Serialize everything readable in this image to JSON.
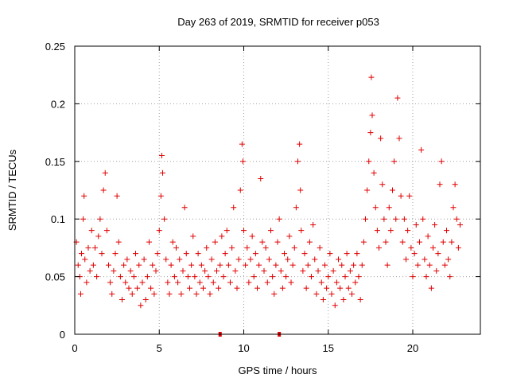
{
  "chart_data": {
    "type": "scatter",
    "title": "Day 263 of 2019, SRMTID for receiver p053",
    "xlabel": "GPS time / hours",
    "ylabel": "SRMTID / TECUs",
    "xlim": [
      0,
      24
    ],
    "ylim": [
      0,
      0.25
    ],
    "xticks": [
      0,
      5,
      10,
      15,
      20
    ],
    "xtick_labels": [
      "0",
      "5",
      "10",
      "15",
      "20"
    ],
    "yticks": [
      0,
      0.05,
      0.1,
      0.15,
      0.2,
      0.25
    ],
    "ytick_labels": [
      "0",
      "0.05",
      "0.1",
      "0.15",
      "0.2",
      "0.25"
    ],
    "grid": true,
    "marker": "+",
    "color": "#e00000",
    "series": [
      {
        "name": "SRMTID",
        "points": [
          [
            0.1,
            0.08
          ],
          [
            0.2,
            0.06
          ],
          [
            0.3,
            0.05
          ],
          [
            0.35,
            0.035
          ],
          [
            0.4,
            0.07
          ],
          [
            0.5,
            0.1
          ],
          [
            0.55,
            0.12
          ],
          [
            0.6,
            0.065
          ],
          [
            0.7,
            0.045
          ],
          [
            0.8,
            0.075
          ],
          [
            0.9,
            0.055
          ],
          [
            1.0,
            0.09
          ],
          [
            1.1,
            0.06
          ],
          [
            1.2,
            0.075
          ],
          [
            1.3,
            0.05
          ],
          [
            1.4,
            0.085
          ],
          [
            1.5,
            0.1
          ],
          [
            1.6,
            0.07
          ],
          [
            1.7,
            0.125
          ],
          [
            1.8,
            0.14
          ],
          [
            1.9,
            0.09
          ],
          [
            2.0,
            0.06
          ],
          [
            2.1,
            0.045
          ],
          [
            2.2,
            0.035
          ],
          [
            2.3,
            0.055
          ],
          [
            2.4,
            0.07
          ],
          [
            2.5,
            0.12
          ],
          [
            2.6,
            0.08
          ],
          [
            2.7,
            0.05
          ],
          [
            2.8,
            0.03
          ],
          [
            2.9,
            0.06
          ],
          [
            3.0,
            0.045
          ],
          [
            3.1,
            0.065
          ],
          [
            3.2,
            0.04
          ],
          [
            3.3,
            0.055
          ],
          [
            3.4,
            0.035
          ],
          [
            3.5,
            0.05
          ],
          [
            3.6,
            0.07
          ],
          [
            3.7,
            0.04
          ],
          [
            3.8,
            0.06
          ],
          [
            3.9,
            0.025
          ],
          [
            4.0,
            0.045
          ],
          [
            4.1,
            0.065
          ],
          [
            4.2,
            0.03
          ],
          [
            4.3,
            0.05
          ],
          [
            4.4,
            0.08
          ],
          [
            4.5,
            0.04
          ],
          [
            4.6,
            0.06
          ],
          [
            4.7,
            0.035
          ],
          [
            4.8,
            0.055
          ],
          [
            4.9,
            0.07
          ],
          [
            5.0,
            0.09
          ],
          [
            5.1,
            0.12
          ],
          [
            5.15,
            0.155
          ],
          [
            5.2,
            0.14
          ],
          [
            5.3,
            0.1
          ],
          [
            5.4,
            0.065
          ],
          [
            5.5,
            0.045
          ],
          [
            5.6,
            0.035
          ],
          [
            5.7,
            0.06
          ],
          [
            5.8,
            0.08
          ],
          [
            5.9,
            0.05
          ],
          [
            6.0,
            0.075
          ],
          [
            6.1,
            0.045
          ],
          [
            6.2,
            0.065
          ],
          [
            6.3,
            0.035
          ],
          [
            6.4,
            0.055
          ],
          [
            6.5,
            0.11
          ],
          [
            6.6,
            0.07
          ],
          [
            6.7,
            0.05
          ],
          [
            6.8,
            0.04
          ],
          [
            6.9,
            0.06
          ],
          [
            7.0,
            0.085
          ],
          [
            7.1,
            0.05
          ],
          [
            7.2,
            0.035
          ],
          [
            7.3,
            0.07
          ],
          [
            7.4,
            0.045
          ],
          [
            7.5,
            0.06
          ],
          [
            7.6,
            0.04
          ],
          [
            7.7,
            0.055
          ],
          [
            7.8,
            0.075
          ],
          [
            7.9,
            0.05
          ],
          [
            8.0,
            0.035
          ],
          [
            8.1,
            0.065
          ],
          [
            8.2,
            0.045
          ],
          [
            8.3,
            0.08
          ],
          [
            8.4,
            0.055
          ],
          [
            8.5,
            0.04
          ],
          [
            8.6,
            0.06
          ],
          [
            8.7,
            0.085
          ],
          [
            8.8,
            0.05
          ],
          [
            8.9,
            0.07
          ],
          [
            9.0,
            0.09
          ],
          [
            9.1,
            0.06
          ],
          [
            9.2,
            0.045
          ],
          [
            9.3,
            0.075
          ],
          [
            9.4,
            0.11
          ],
          [
            9.5,
            0.055
          ],
          [
            9.6,
            0.04
          ],
          [
            9.7,
            0.065
          ],
          [
            9.8,
            0.125
          ],
          [
            9.9,
            0.165
          ],
          [
            9.95,
            0.15
          ],
          [
            10.0,
            0.09
          ],
          [
            10.1,
            0.06
          ],
          [
            10.2,
            0.075
          ],
          [
            10.3,
            0.045
          ],
          [
            10.4,
            0.065
          ],
          [
            10.5,
            0.085
          ],
          [
            10.6,
            0.05
          ],
          [
            10.7,
            0.07
          ],
          [
            10.8,
            0.04
          ],
          [
            10.9,
            0.06
          ],
          [
            11.0,
            0.135
          ],
          [
            11.1,
            0.08
          ],
          [
            11.2,
            0.055
          ],
          [
            11.3,
            0.075
          ],
          [
            11.4,
            0.045
          ],
          [
            11.5,
            0.065
          ],
          [
            11.6,
            0.09
          ],
          [
            11.7,
            0.05
          ],
          [
            11.8,
            0.035
          ],
          [
            11.9,
            0.06
          ],
          [
            12.0,
            0.08
          ],
          [
            12.1,
            0.1
          ],
          [
            12.2,
            0.055
          ],
          [
            12.3,
            0.04
          ],
          [
            12.4,
            0.07
          ],
          [
            12.5,
            0.05
          ],
          [
            12.6,
            0.065
          ],
          [
            12.7,
            0.085
          ],
          [
            12.8,
            0.045
          ],
          [
            12.9,
            0.06
          ],
          [
            13.0,
            0.075
          ],
          [
            13.1,
            0.11
          ],
          [
            13.2,
            0.15
          ],
          [
            13.3,
            0.165
          ],
          [
            13.35,
            0.125
          ],
          [
            13.4,
            0.09
          ],
          [
            13.5,
            0.055
          ],
          [
            13.6,
            0.07
          ],
          [
            13.7,
            0.04
          ],
          [
            13.8,
            0.06
          ],
          [
            13.9,
            0.08
          ],
          [
            14.0,
            0.05
          ],
          [
            14.1,
            0.095
          ],
          [
            14.2,
            0.065
          ],
          [
            14.3,
            0.035
          ],
          [
            14.4,
            0.055
          ],
          [
            14.5,
            0.075
          ],
          [
            14.6,
            0.045
          ],
          [
            14.7,
            0.03
          ],
          [
            14.8,
            0.06
          ],
          [
            14.9,
            0.04
          ],
          [
            15.0,
            0.05
          ],
          [
            15.1,
            0.07
          ],
          [
            15.2,
            0.035
          ],
          [
            15.3,
            0.055
          ],
          [
            15.4,
            0.025
          ],
          [
            15.5,
            0.045
          ],
          [
            15.6,
            0.065
          ],
          [
            15.7,
            0.04
          ],
          [
            15.8,
            0.06
          ],
          [
            15.9,
            0.03
          ],
          [
            16.0,
            0.05
          ],
          [
            16.1,
            0.07
          ],
          [
            16.2,
            0.04
          ],
          [
            16.3,
            0.055
          ],
          [
            16.4,
            0.035
          ],
          [
            16.5,
            0.06
          ],
          [
            16.6,
            0.045
          ],
          [
            16.7,
            0.07
          ],
          [
            16.8,
            0.05
          ],
          [
            16.9,
            0.03
          ],
          [
            17.0,
            0.06
          ],
          [
            17.1,
            0.08
          ],
          [
            17.2,
            0.1
          ],
          [
            17.3,
            0.125
          ],
          [
            17.4,
            0.15
          ],
          [
            17.5,
            0.175
          ],
          [
            17.55,
            0.223
          ],
          [
            17.6,
            0.19
          ],
          [
            17.7,
            0.14
          ],
          [
            17.8,
            0.11
          ],
          [
            17.9,
            0.09
          ],
          [
            18.0,
            0.075
          ],
          [
            18.1,
            0.17
          ],
          [
            18.2,
            0.13
          ],
          [
            18.3,
            0.1
          ],
          [
            18.4,
            0.08
          ],
          [
            18.5,
            0.06
          ],
          [
            18.6,
            0.11
          ],
          [
            18.7,
            0.09
          ],
          [
            18.8,
            0.125
          ],
          [
            18.9,
            0.15
          ],
          [
            19.0,
            0.1
          ],
          [
            19.1,
            0.205
          ],
          [
            19.2,
            0.17
          ],
          [
            19.3,
            0.12
          ],
          [
            19.4,
            0.08
          ],
          [
            19.5,
            0.1
          ],
          [
            19.6,
            0.065
          ],
          [
            19.7,
            0.09
          ],
          [
            19.8,
            0.12
          ],
          [
            19.9,
            0.075
          ],
          [
            20.0,
            0.05
          ],
          [
            20.1,
            0.07
          ],
          [
            20.2,
            0.095
          ],
          [
            20.3,
            0.06
          ],
          [
            20.4,
            0.08
          ],
          [
            20.5,
            0.16
          ],
          [
            20.6,
            0.1
          ],
          [
            20.7,
            0.065
          ],
          [
            20.8,
            0.05
          ],
          [
            20.9,
            0.085
          ],
          [
            21.0,
            0.06
          ],
          [
            21.1,
            0.04
          ],
          [
            21.2,
            0.075
          ],
          [
            21.3,
            0.095
          ],
          [
            21.4,
            0.055
          ],
          [
            21.5,
            0.07
          ],
          [
            21.6,
            0.13
          ],
          [
            21.7,
            0.15
          ],
          [
            21.8,
            0.08
          ],
          [
            21.9,
            0.06
          ],
          [
            22.0,
            0.09
          ],
          [
            22.1,
            0.065
          ],
          [
            22.2,
            0.05
          ],
          [
            22.3,
            0.08
          ],
          [
            22.4,
            0.11
          ],
          [
            22.5,
            0.13
          ],
          [
            22.6,
            0.1
          ],
          [
            22.7,
            0.075
          ],
          [
            22.8,
            0.095
          ]
        ]
      }
    ],
    "axis_markers": [
      {
        "x": 8.6,
        "y": 0
      },
      {
        "x": 12.1,
        "y": 0
      }
    ]
  }
}
